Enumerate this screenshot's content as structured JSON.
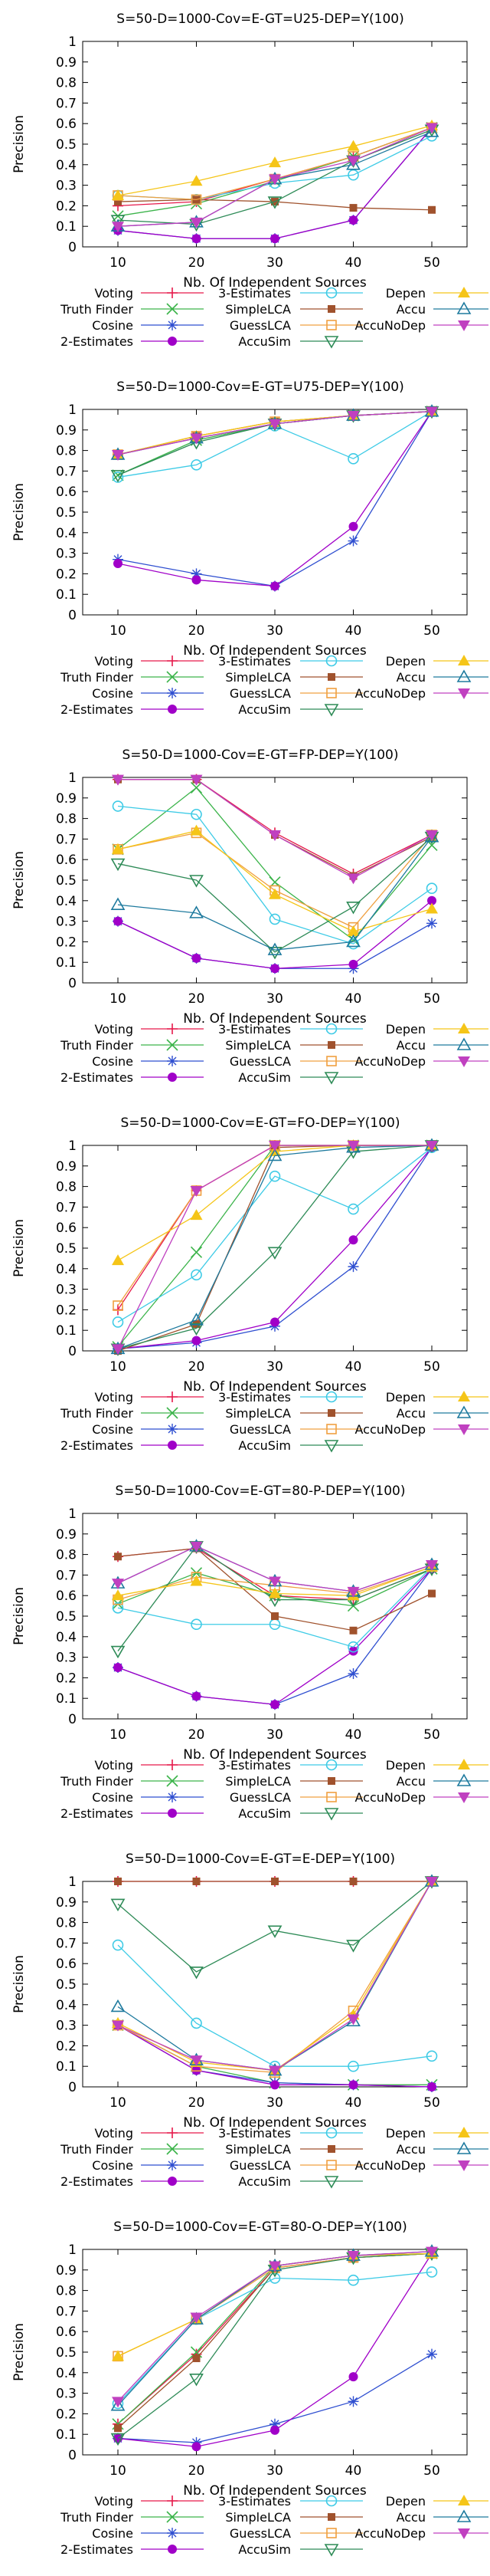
{
  "colors": {
    "Voting": "#e6194b",
    "Truth Finder": "#3cb44b",
    "Cosine": "#2f4fd0",
    "2-Estimates": "#a000c8",
    "3-Estimates": "#3ecbe6",
    "SimpleLCA": "#a0522d",
    "GuessLCA": "#f0a040",
    "AccuSim": "#2e8b57",
    "Depen": "#f5c518",
    "Accu": "#1e7a9e",
    "AccuNoDep": "#c040c0"
  },
  "chart_data": [
    {
      "type": "line",
      "title": "S=50-D=1000-Cov=E-GT=U25-DEP=Y(100)",
      "xlabel": "Nb. Of Independent Sources",
      "ylabel": "Precision",
      "x": [
        10,
        20,
        30,
        40,
        50
      ],
      "ylim": [
        0,
        1
      ],
      "yticks": [
        "0",
        "0.1",
        "0.2",
        "0.3",
        "0.4",
        "0.5",
        "0.6",
        "0.7",
        "0.8",
        "0.9",
        "1"
      ],
      "grid": false,
      "legend_position": "below",
      "series": [
        {
          "name": "Voting",
          "values": [
            0.2,
            0.22,
            0.33,
            0.44,
            0.58
          ]
        },
        {
          "name": "Truth Finder",
          "values": [
            0.15,
            0.21,
            0.32,
            0.44,
            0.58
          ]
        },
        {
          "name": "Cosine",
          "values": [
            0.08,
            0.04,
            0.04,
            0.13,
            0.58
          ]
        },
        {
          "name": "2-Estimates",
          "values": [
            0.08,
            0.04,
            0.04,
            0.13,
            0.58
          ]
        },
        {
          "name": "3-Estimates",
          "values": [
            0.25,
            0.23,
            0.31,
            0.35,
            0.54
          ]
        },
        {
          "name": "SimpleLCA",
          "values": [
            0.22,
            0.23,
            0.22,
            0.19,
            0.18
          ]
        },
        {
          "name": "GuessLCA",
          "values": [
            0.25,
            0.23,
            0.33,
            0.44,
            0.58
          ]
        },
        {
          "name": "AccuSim",
          "values": [
            0.13,
            0.11,
            0.22,
            0.42,
            0.57
          ]
        },
        {
          "name": "Depen",
          "values": [
            0.25,
            0.32,
            0.41,
            0.49,
            0.59
          ]
        },
        {
          "name": "Accu",
          "values": [
            0.1,
            0.12,
            0.33,
            0.4,
            0.56
          ]
        },
        {
          "name": "AccuNoDep",
          "values": [
            0.1,
            0.12,
            0.33,
            0.42,
            0.58
          ]
        }
      ]
    },
    {
      "type": "line",
      "title": "S=50-D=1000-Cov=E-GT=U75-DEP=Y(100)",
      "xlabel": "Nb. Of Independent Sources",
      "ylabel": "Precision",
      "x": [
        10,
        20,
        30,
        40,
        50
      ],
      "ylim": [
        0,
        1
      ],
      "yticks": [
        "0",
        "0.1",
        "0.2",
        "0.3",
        "0.4",
        "0.5",
        "0.6",
        "0.7",
        "0.8",
        "0.9",
        "1"
      ],
      "grid": false,
      "legend_position": "below",
      "series": [
        {
          "name": "Voting",
          "values": [
            0.78,
            0.86,
            0.93,
            0.97,
            0.99
          ]
        },
        {
          "name": "Truth Finder",
          "values": [
            0.68,
            0.85,
            0.93,
            0.97,
            0.99
          ]
        },
        {
          "name": "Cosine",
          "values": [
            0.27,
            0.2,
            0.14,
            0.36,
            0.99
          ]
        },
        {
          "name": "2-Estimates",
          "values": [
            0.25,
            0.17,
            0.14,
            0.43,
            0.99
          ]
        },
        {
          "name": "3-Estimates",
          "values": [
            0.67,
            0.73,
            0.92,
            0.76,
            0.99
          ]
        },
        {
          "name": "SimpleLCA",
          "values": [
            0.78,
            0.87,
            0.94,
            0.97,
            0.99
          ]
        },
        {
          "name": "GuessLCA",
          "values": [
            0.78,
            0.87,
            0.94,
            0.97,
            0.99
          ]
        },
        {
          "name": "AccuSim",
          "values": [
            0.68,
            0.84,
            0.93,
            0.97,
            0.99
          ]
        },
        {
          "name": "Depen",
          "values": [
            0.78,
            0.87,
            0.94,
            0.97,
            0.99
          ]
        },
        {
          "name": "Accu",
          "values": [
            0.78,
            0.86,
            0.93,
            0.97,
            0.99
          ]
        },
        {
          "name": "AccuNoDep",
          "values": [
            0.78,
            0.86,
            0.93,
            0.97,
            0.99
          ]
        }
      ]
    },
    {
      "type": "line",
      "title": "S=50-D=1000-Cov=E-GT=FP-DEP=Y(100)",
      "xlabel": "Nb. Of Independent Sources",
      "ylabel": "Precision",
      "x": [
        10,
        20,
        30,
        40,
        50
      ],
      "ylim": [
        0,
        1
      ],
      "yticks": [
        "0",
        "0.1",
        "0.2",
        "0.3",
        "0.4",
        "0.5",
        "0.6",
        "0.7",
        "0.8",
        "0.9",
        "1"
      ],
      "grid": false,
      "legend_position": "below",
      "series": [
        {
          "name": "Voting",
          "values": [
            0.99,
            0.99,
            0.73,
            0.53,
            0.72
          ]
        },
        {
          "name": "Truth Finder",
          "values": [
            0.65,
            0.95,
            0.49,
            0.21,
            0.67
          ]
        },
        {
          "name": "Cosine",
          "values": [
            0.3,
            0.12,
            0.07,
            0.07,
            0.29
          ]
        },
        {
          "name": "2-Estimates",
          "values": [
            0.3,
            0.12,
            0.07,
            0.09,
            0.4
          ]
        },
        {
          "name": "3-Estimates",
          "values": [
            0.86,
            0.82,
            0.31,
            0.19,
            0.46
          ]
        },
        {
          "name": "SimpleLCA",
          "values": [
            0.99,
            0.99,
            0.72,
            0.52,
            0.71
          ]
        },
        {
          "name": "GuessLCA",
          "values": [
            0.65,
            0.73,
            0.45,
            0.27,
            0.72
          ]
        },
        {
          "name": "AccuSim",
          "values": [
            0.58,
            0.5,
            0.15,
            0.37,
            0.71
          ]
        },
        {
          "name": "Depen",
          "values": [
            0.65,
            0.74,
            0.43,
            0.25,
            0.36
          ]
        },
        {
          "name": "Accu",
          "values": [
            0.38,
            0.34,
            0.16,
            0.2,
            0.71
          ]
        },
        {
          "name": "AccuNoDep",
          "values": [
            0.99,
            0.99,
            0.72,
            0.51,
            0.72
          ]
        }
      ]
    },
    {
      "type": "line",
      "title": "S=50-D=1000-Cov=E-GT=FO-DEP=Y(100)",
      "xlabel": "Nb. Of Independent Sources",
      "ylabel": "Precision",
      "x": [
        10,
        20,
        30,
        40,
        50
      ],
      "ylim": [
        0,
        1
      ],
      "yticks": [
        "0",
        "0.1",
        "0.2",
        "0.3",
        "0.4",
        "0.5",
        "0.6",
        "0.7",
        "0.8",
        "0.9",
        "1"
      ],
      "grid": false,
      "legend_position": "below",
      "series": [
        {
          "name": "Voting",
          "values": [
            0.2,
            0.78,
            1.0,
            1.0,
            1.0
          ]
        },
        {
          "name": "Truth Finder",
          "values": [
            0.02,
            0.48,
            1.0,
            1.0,
            1.0
          ]
        },
        {
          "name": "Cosine",
          "values": [
            0.01,
            0.04,
            0.12,
            0.41,
            0.99
          ]
        },
        {
          "name": "2-Estimates",
          "values": [
            0.01,
            0.05,
            0.14,
            0.54,
            0.99
          ]
        },
        {
          "name": "3-Estimates",
          "values": [
            0.14,
            0.37,
            0.85,
            0.69,
            0.99
          ]
        },
        {
          "name": "SimpleLCA",
          "values": [
            0.0,
            0.13,
            0.99,
            1.0,
            1.0
          ]
        },
        {
          "name": "GuessLCA",
          "values": [
            0.22,
            0.78,
            1.0,
            1.0,
            1.0
          ]
        },
        {
          "name": "AccuSim",
          "values": [
            0.01,
            0.11,
            0.48,
            0.97,
            1.0
          ]
        },
        {
          "name": "Depen",
          "values": [
            0.44,
            0.66,
            0.97,
            1.0,
            1.0
          ]
        },
        {
          "name": "Accu",
          "values": [
            0.01,
            0.15,
            0.95,
            0.99,
            1.0
          ]
        },
        {
          "name": "AccuNoDep",
          "values": [
            0.01,
            0.78,
            1.0,
            1.0,
            1.0
          ]
        }
      ]
    },
    {
      "type": "line",
      "title": "S=50-D=1000-Cov=E-GT=80-P-DEP=Y(100)",
      "xlabel": "Nb. Of Independent Sources",
      "ylabel": "Precision",
      "x": [
        10,
        20,
        30,
        40,
        50
      ],
      "ylim": [
        0,
        1
      ],
      "yticks": [
        "0",
        "0.1",
        "0.2",
        "0.3",
        "0.4",
        "0.5",
        "0.6",
        "0.7",
        "0.8",
        "0.9",
        "1"
      ],
      "grid": false,
      "legend_position": "below",
      "series": [
        {
          "name": "Voting",
          "values": [
            0.79,
            0.83,
            0.6,
            0.58,
            0.73
          ]
        },
        {
          "name": "Truth Finder",
          "values": [
            0.56,
            0.71,
            0.6,
            0.55,
            0.73
          ]
        },
        {
          "name": "Cosine",
          "values": [
            0.25,
            0.11,
            0.07,
            0.22,
            0.73
          ]
        },
        {
          "name": "2-Estimates",
          "values": [
            0.25,
            0.11,
            0.07,
            0.33,
            0.73
          ]
        },
        {
          "name": "3-Estimates",
          "values": [
            0.54,
            0.46,
            0.46,
            0.35,
            0.74
          ]
        },
        {
          "name": "SimpleLCA",
          "values": [
            0.79,
            0.83,
            0.5,
            0.43,
            0.61
          ]
        },
        {
          "name": "GuessLCA",
          "values": [
            0.58,
            0.69,
            0.65,
            0.61,
            0.74
          ]
        },
        {
          "name": "AccuSim",
          "values": [
            0.33,
            0.84,
            0.58,
            0.58,
            0.73
          ]
        },
        {
          "name": "Depen",
          "values": [
            0.6,
            0.67,
            0.61,
            0.6,
            0.74
          ]
        },
        {
          "name": "Accu",
          "values": [
            0.66,
            0.84,
            0.67,
            0.62,
            0.75
          ]
        },
        {
          "name": "AccuNoDep",
          "values": [
            0.66,
            0.84,
            0.67,
            0.62,
            0.75
          ]
        }
      ]
    },
    {
      "type": "line",
      "title": "S=50-D=1000-Cov=E-GT=E-DEP=Y(100)",
      "xlabel": "Nb. Of Independent Sources",
      "ylabel": "Precision",
      "x": [
        10,
        20,
        30,
        40,
        50
      ],
      "ylim": [
        0,
        1
      ],
      "yticks": [
        "0",
        "0.1",
        "0.2",
        "0.3",
        "0.4",
        "0.5",
        "0.6",
        "0.7",
        "0.8",
        "0.9",
        "1"
      ],
      "grid": false,
      "legend_position": "below",
      "series": [
        {
          "name": "Voting",
          "values": [
            1.0,
            1.0,
            1.0,
            1.0,
            1.0
          ]
        },
        {
          "name": "Truth Finder",
          "values": [
            0.3,
            0.1,
            0.02,
            0.01,
            0.01
          ]
        },
        {
          "name": "Cosine",
          "values": [
            0.3,
            0.08,
            0.02,
            0.01,
            0.0
          ]
        },
        {
          "name": "2-Estimates",
          "values": [
            0.3,
            0.08,
            0.01,
            0.01,
            0.0
          ]
        },
        {
          "name": "3-Estimates",
          "values": [
            0.69,
            0.31,
            0.1,
            0.1,
            0.15
          ]
        },
        {
          "name": "SimpleLCA",
          "values": [
            1.0,
            1.0,
            1.0,
            1.0,
            1.0
          ]
        },
        {
          "name": "GuessLCA",
          "values": [
            0.3,
            0.1,
            0.07,
            0.37,
            1.0
          ]
        },
        {
          "name": "AccuSim",
          "values": [
            0.89,
            0.56,
            0.76,
            0.69,
            1.0
          ]
        },
        {
          "name": "Depen",
          "values": [
            0.31,
            0.12,
            0.08,
            0.35,
            1.0
          ]
        },
        {
          "name": "Accu",
          "values": [
            0.39,
            0.13,
            0.08,
            0.32,
            1.0
          ]
        },
        {
          "name": "AccuNoDep",
          "values": [
            0.3,
            0.13,
            0.08,
            0.33,
            1.0
          ]
        }
      ]
    },
    {
      "type": "line",
      "title": "S=50-D=1000-Cov=E-GT=80-O-DEP=Y(100)",
      "xlabel": "Nb. Of Independent Sources",
      "ylabel": "Precision",
      "x": [
        10,
        20,
        30,
        40,
        50
      ],
      "ylim": [
        0,
        1
      ],
      "yticks": [
        "0",
        "0.1",
        "0.2",
        "0.3",
        "0.4",
        "0.5",
        "0.6",
        "0.7",
        "0.8",
        "0.9",
        "1"
      ],
      "grid": false,
      "legend_position": "below",
      "series": [
        {
          "name": "Voting",
          "values": [
            0.15,
            0.49,
            0.91,
            0.96,
            0.98
          ]
        },
        {
          "name": "Truth Finder",
          "values": [
            0.15,
            0.5,
            0.92,
            0.97,
            0.98
          ]
        },
        {
          "name": "Cosine",
          "values": [
            0.08,
            0.06,
            0.15,
            0.26,
            0.49
          ]
        },
        {
          "name": "2-Estimates",
          "values": [
            0.08,
            0.04,
            0.12,
            0.38,
            0.98
          ]
        },
        {
          "name": "3-Estimates",
          "values": [
            0.25,
            0.66,
            0.86,
            0.85,
            0.89
          ]
        },
        {
          "name": "SimpleLCA",
          "values": [
            0.13,
            0.47,
            0.91,
            0.96,
            0.98
          ]
        },
        {
          "name": "GuessLCA",
          "values": [
            0.48,
            0.66,
            0.91,
            0.96,
            0.98
          ]
        },
        {
          "name": "AccuSim",
          "values": [
            0.08,
            0.37,
            0.9,
            0.96,
            0.98
          ]
        },
        {
          "name": "Depen",
          "values": [
            0.48,
            0.66,
            0.92,
            0.97,
            0.98
          ]
        },
        {
          "name": "Accu",
          "values": [
            0.24,
            0.66,
            0.92,
            0.97,
            0.99
          ]
        },
        {
          "name": "AccuNoDep",
          "values": [
            0.26,
            0.67,
            0.92,
            0.97,
            0.99
          ]
        }
      ]
    }
  ]
}
